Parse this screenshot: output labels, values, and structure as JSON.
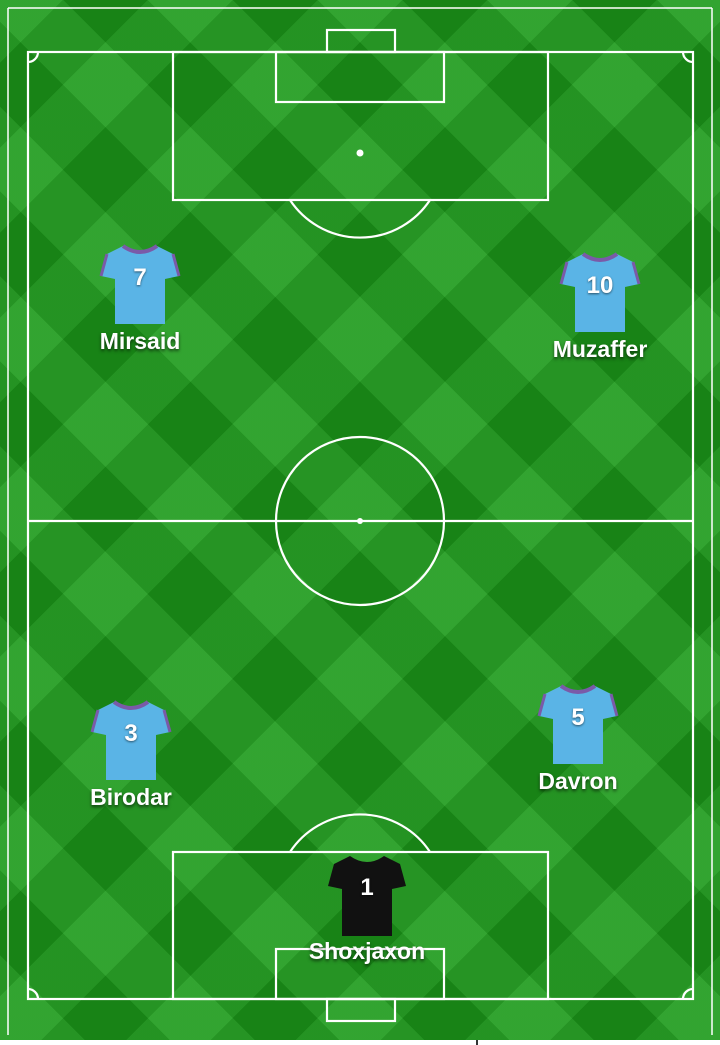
{
  "pitch": {
    "grass_color": "#1c9a1a",
    "line_color": "#ffffff",
    "outfield_kit_color": "#5ab4e6",
    "outfield_trim_color": "#7a5aa8",
    "goalkeeper_kit_color": "#111111"
  },
  "players": [
    {
      "name": "Mirsaid",
      "number": "7",
      "role": "outfield"
    },
    {
      "name": "Muzaffer",
      "number": "10",
      "role": "outfield"
    },
    {
      "name": "Birodar",
      "number": "3",
      "role": "outfield"
    },
    {
      "name": "Davron",
      "number": "5",
      "role": "outfield"
    },
    {
      "name": "Shoxjaxon",
      "number": "1",
      "role": "goalkeeper"
    }
  ]
}
